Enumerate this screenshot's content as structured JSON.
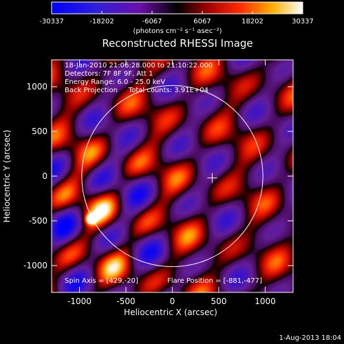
{
  "chart_data": {
    "type": "heatmap",
    "title": "Reconstructed RHESSI Image",
    "xlabel": "Heliocentric X (arcsec)",
    "ylabel": "Heliocentric Y (arcsec)",
    "xlim": [
      -1300,
      1300
    ],
    "ylim": [
      -1300,
      1300
    ],
    "xticks": [
      -1000,
      -500,
      0,
      500,
      1000
    ],
    "yticks": [
      -1000,
      -500,
      0,
      500,
      1000
    ],
    "colorbar": {
      "min": -30337,
      "max": 30337,
      "ticks": [
        -30337,
        -18202,
        -6067,
        6067,
        18202,
        30337
      ],
      "tick_labels": [
        "-30337",
        "-18202",
        "-6067",
        "6067",
        "18202",
        "30337"
      ],
      "units_label": "(photons cm⁻² s⁻¹ asec⁻²)"
    },
    "info_lines": [
      "18-Jan-2010 21:06:28.000 to 21:10:22.000",
      "Detectors: 7F 8F 9F, Att 1",
      "Energy Range: 6.0 - 25.0 keV",
      "Back Projection     Total counts: 3.91E+04"
    ],
    "spin_axis_text": "Spin Axis = [429,-20]",
    "flare_position_text": "Flare Position = [-881,-477]",
    "spin_axis": [
      429,
      -20
    ],
    "flare_position": [
      -881,
      -477
    ],
    "solar_disk": {
      "center": [
        0,
        0
      ],
      "radius_arcsec": 975
    },
    "annotations": [
      {
        "type": "cross",
        "x": 429,
        "y": -20
      },
      {
        "type": "circle",
        "x": 0,
        "y": 0,
        "r": 975
      }
    ]
  },
  "footer": {
    "timestamp": "1-Aug-2013 18:04"
  }
}
